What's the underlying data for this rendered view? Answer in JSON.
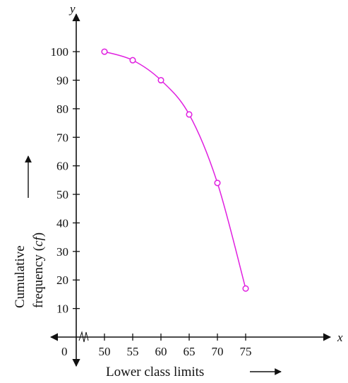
{
  "chart_data": {
    "type": "line",
    "x": [
      50,
      55,
      60,
      65,
      70,
      75
    ],
    "y": [
      100,
      97,
      90,
      78,
      54,
      17
    ],
    "xlim": [
      45,
      79
    ],
    "ylim": [
      0,
      103
    ],
    "x_ticks": [
      "50",
      "55",
      "60",
      "65",
      "70",
      "75"
    ],
    "y_ticks": [
      "10",
      "20",
      "30",
      "40",
      "50",
      "60",
      "70",
      "80",
      "90",
      "100"
    ],
    "x_axis_letter": "x",
    "y_axis_letter": "y",
    "origin_label": "0",
    "xlabel": "Lower class limits",
    "ylabel_line1": "Cumulative",
    "ylabel_line2_prefix": "frequency (",
    "ylabel_line2_italic": "cf",
    "ylabel_line2_suffix": ")",
    "grid": false,
    "line_color": "#e020e0",
    "marker": "open-circle"
  }
}
